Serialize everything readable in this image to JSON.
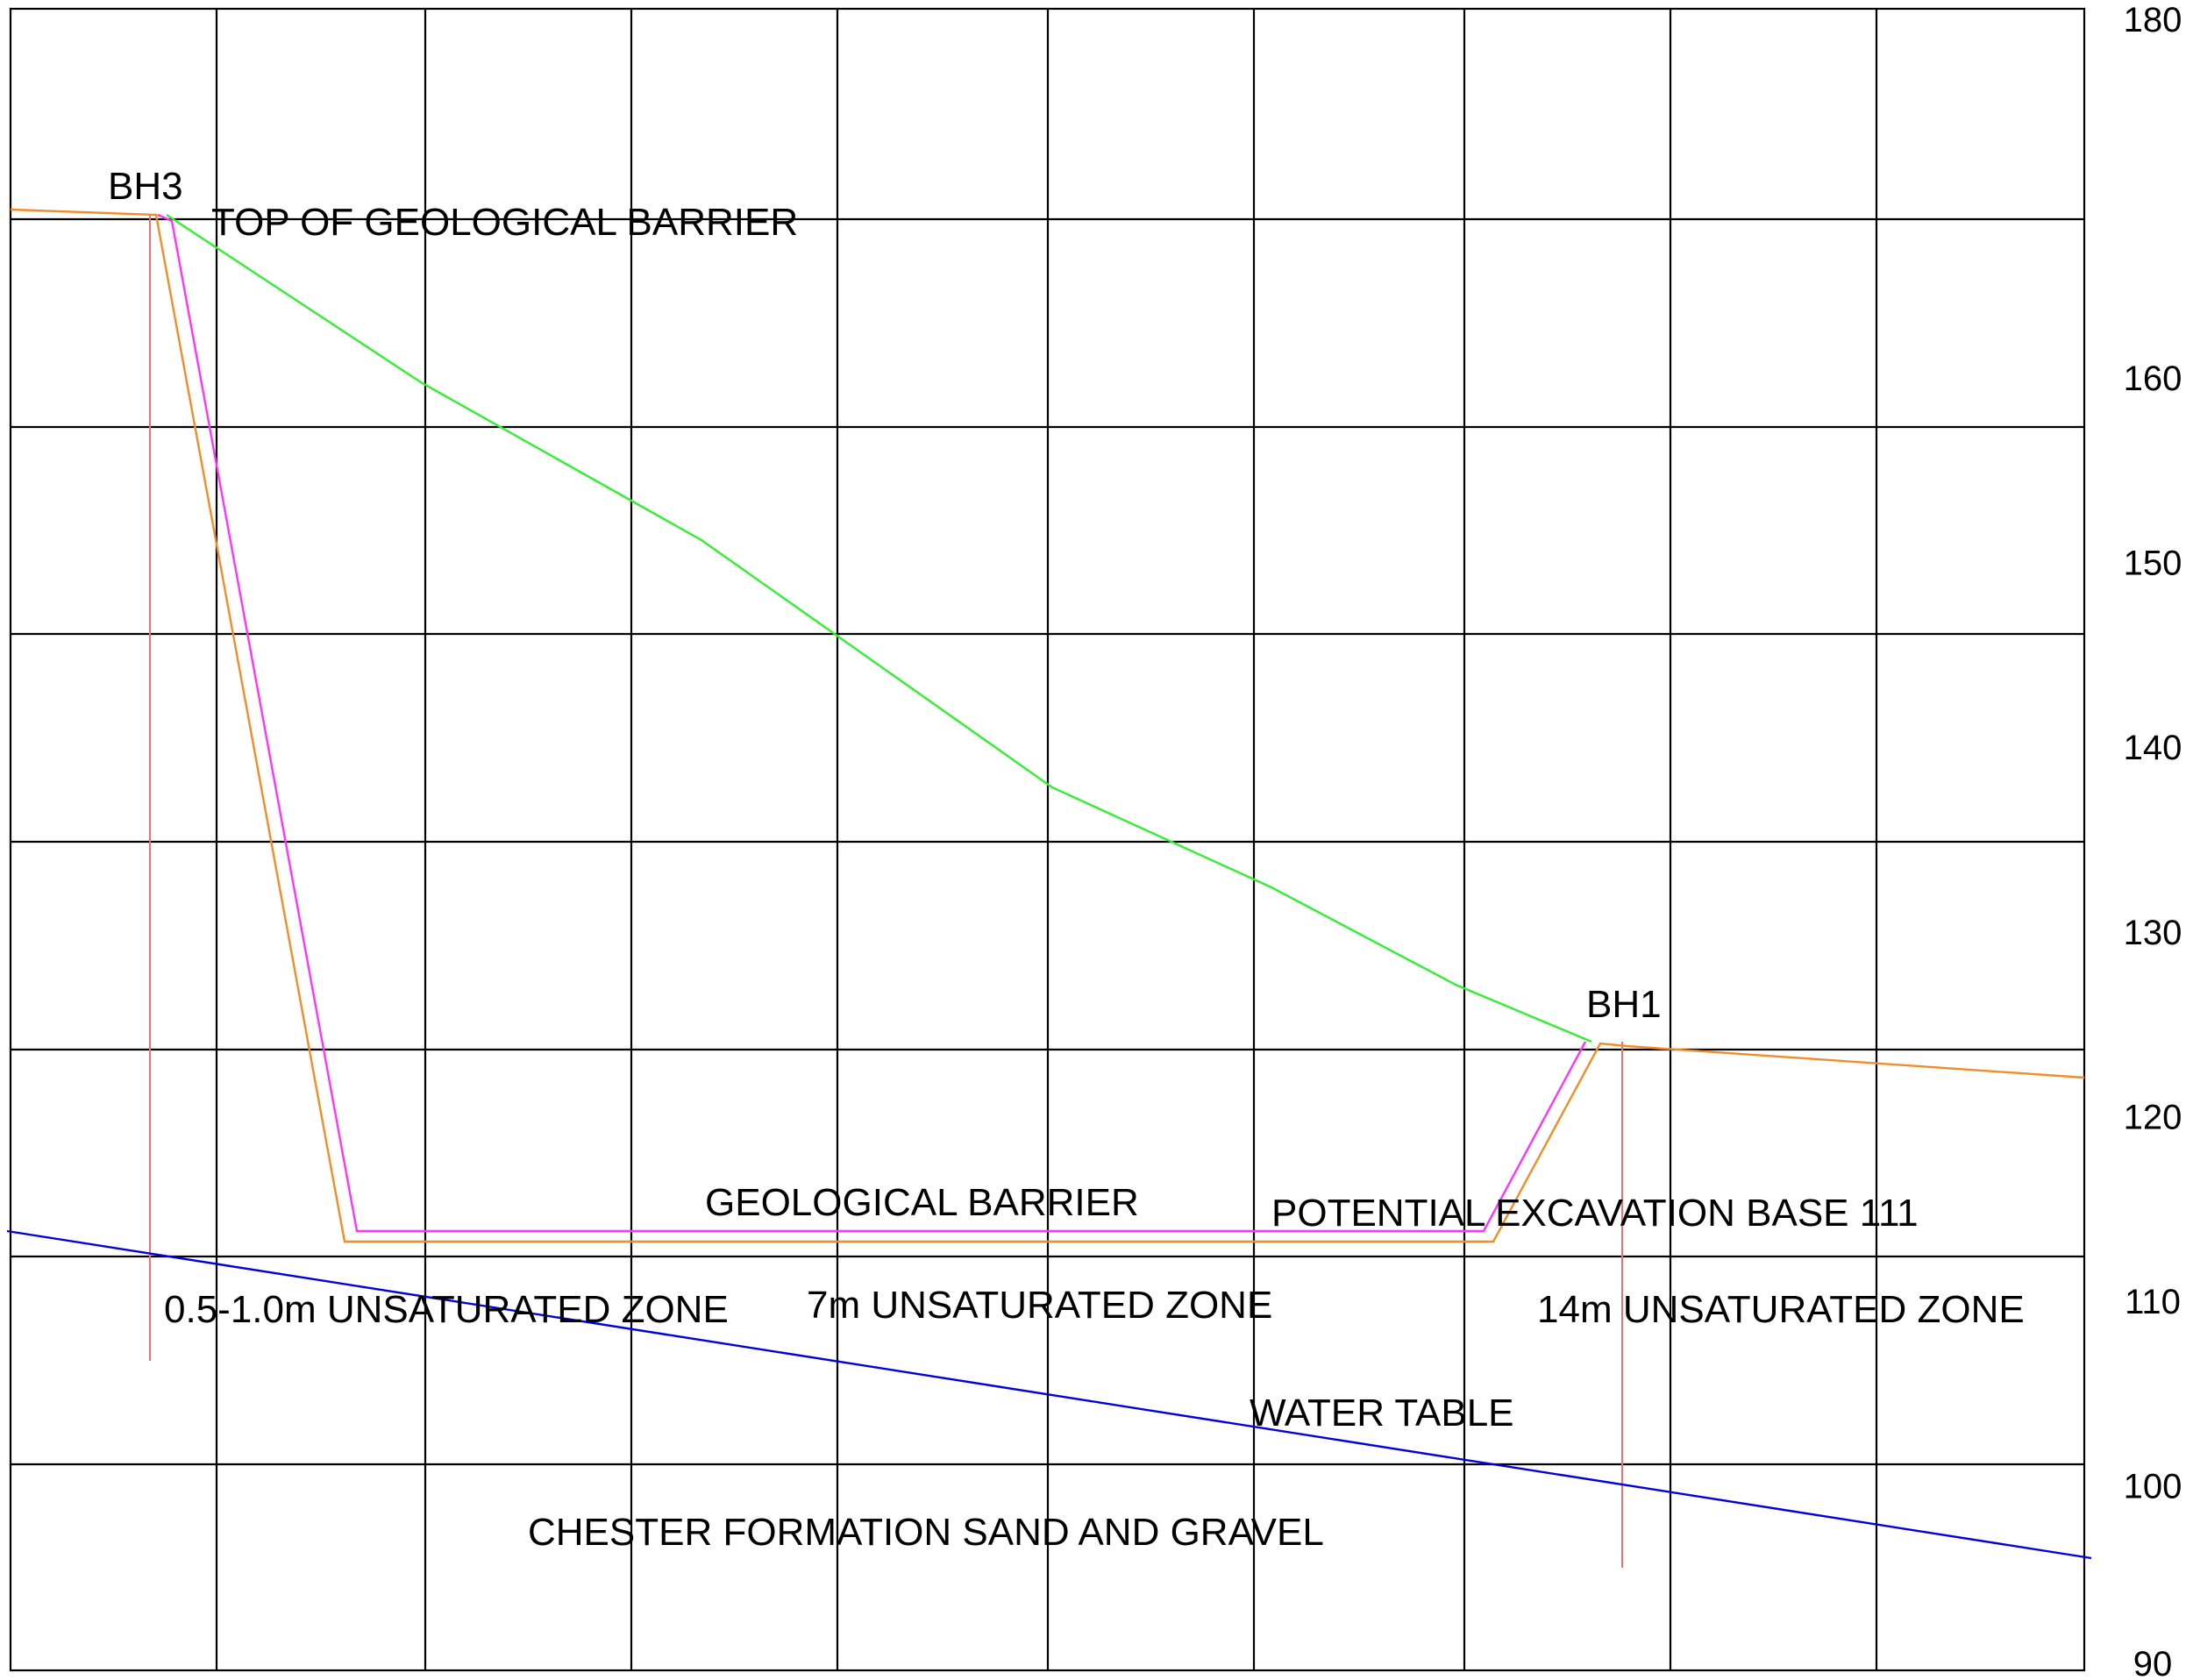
{
  "y_axis": {
    "min": 90,
    "max": 180,
    "tick_values": [
      180,
      160,
      150,
      140,
      130,
      120,
      110,
      100,
      90
    ]
  },
  "colors": {
    "grid": "#000000",
    "ground_surface": "#f28c28",
    "geological_barrier": "#ff33ff",
    "top_of_barrier": "#33ee33",
    "water_table": "#0000dd",
    "borehole": "#f07070"
  },
  "labels": {
    "bh3": "BH3",
    "bh1": "BH1",
    "top_barrier": "TOP OF GEOLOGICAL BARRIER",
    "geological_barrier": "GEOLOGICAL BARRIER",
    "excavation_base": "POTENTIAL EXCAVATION BASE 111",
    "unsat_left": "0.5-1.0m UNSATURATED ZONE",
    "unsat_mid": "7m UNSATURATED ZONE",
    "unsat_right": "14m UNSATURATED ZONE",
    "water_table": "WATER TABLE",
    "chester": "CHESTER FORMATION  SAND AND GRAVEL"
  }
}
